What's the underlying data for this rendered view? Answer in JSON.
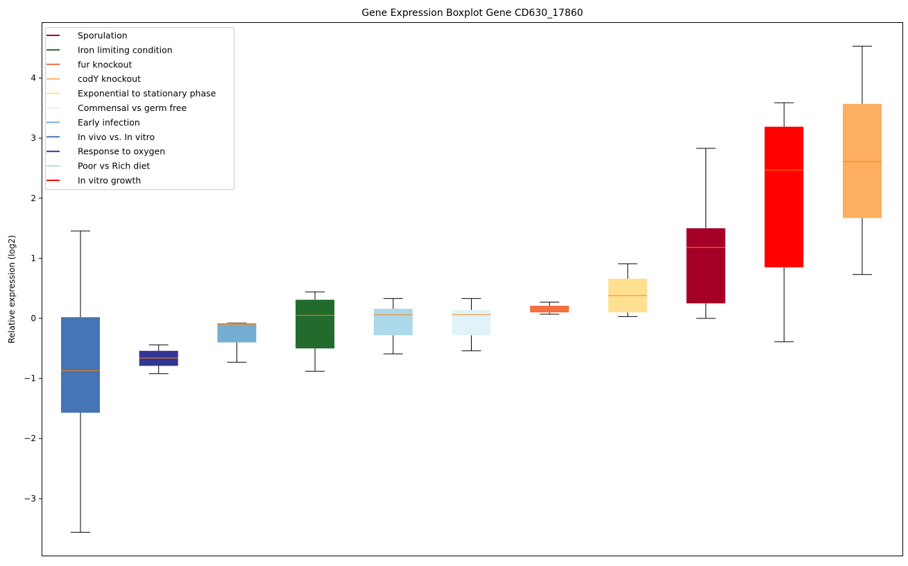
{
  "chart_data": {
    "type": "boxplot",
    "title": "Gene Expression Boxplot Gene CD630_17860",
    "xlabel": "",
    "ylabel": "Relative expression (log2)",
    "ylim": [
      -3.96,
      4.93
    ],
    "yticks": [
      -3,
      -2,
      -1,
      0,
      1,
      2,
      3,
      4
    ],
    "ytick_labels": [
      "−3",
      "−2",
      "−1",
      "0",
      "1",
      "2",
      "3",
      "4"
    ],
    "grid": false,
    "legend_position": "top-left",
    "median_color": "#ff7f0e",
    "legend": [
      {
        "label": "Sporulation",
        "color": "#a50026"
      },
      {
        "label": "Iron limiting condition",
        "color": "#226b2d"
      },
      {
        "label": "fur knockout",
        "color": "#f46d43"
      },
      {
        "label": "codY knockout",
        "color": "#fdae61"
      },
      {
        "label": "Exponential to stationary phase",
        "color": "#fee090"
      },
      {
        "label": "Commensal vs germ free",
        "color": "#e0f3f8"
      },
      {
        "label": "Early infection",
        "color": "#74add1"
      },
      {
        "label": "In vivo vs. In vitro",
        "color": "#4575b4"
      },
      {
        "label": "Response to oxygen",
        "color": "#313695"
      },
      {
        "label": "Poor vs Rich diet",
        "color": "#abd9e9"
      },
      {
        "label": "In vitro growth",
        "color": "#ff0000"
      }
    ],
    "boxes": [
      {
        "group": "In vivo vs. In vitro",
        "color": "#4575b4",
        "whislo": -3.56,
        "q1": -1.57,
        "med": -0.87,
        "q3": 0.02,
        "whishi": 1.455
      },
      {
        "group": "Response to oxygen",
        "color": "#313695",
        "whislo": -0.92,
        "q1": -0.79,
        "med": -0.66,
        "q3": -0.54,
        "whishi": -0.44
      },
      {
        "group": "Early infection",
        "color": "#74add1",
        "whislo": -0.73,
        "q1": -0.4,
        "med": -0.1,
        "q3": -0.08,
        "whishi": -0.08
      },
      {
        "group": "Iron limiting condition",
        "color": "#226b2d",
        "whislo": -0.88,
        "q1": -0.5,
        "med": 0.05,
        "q3": 0.31,
        "whishi": 0.44
      },
      {
        "group": "Poor vs Rich diet",
        "color": "#abd9e9",
        "whislo": -0.59,
        "q1": -0.28,
        "med": 0.06,
        "q3": 0.16,
        "whishi": 0.33
      },
      {
        "group": "Commensal vs germ free",
        "color": "#e0f3f8",
        "whislo": -0.54,
        "q1": -0.28,
        "med": 0.06,
        "q3": 0.14,
        "whishi": 0.33
      },
      {
        "group": "fur knockout",
        "color": "#f46d43",
        "whislo": 0.07,
        "q1": 0.1,
        "med": 0.15,
        "q3": 0.21,
        "whishi": 0.27
      },
      {
        "group": "Exponential to stationary phase",
        "color": "#fee090",
        "whislo": 0.03,
        "q1": 0.1,
        "med": 0.38,
        "q3": 0.66,
        "whishi": 0.91
      },
      {
        "group": "Sporulation",
        "color": "#a50026",
        "whislo": 0.0,
        "q1": 0.25,
        "med": 1.18,
        "q3": 1.5,
        "whishi": 2.83
      },
      {
        "group": "In vitro growth",
        "color": "#ff0000",
        "whislo": -0.39,
        "q1": 0.85,
        "med": 2.47,
        "q3": 3.19,
        "whishi": 3.59
      },
      {
        "group": "codY knockout",
        "color": "#fdae61",
        "whislo": 0.73,
        "q1": 1.67,
        "med": 2.61,
        "q3": 3.57,
        "whishi": 4.53
      }
    ]
  }
}
